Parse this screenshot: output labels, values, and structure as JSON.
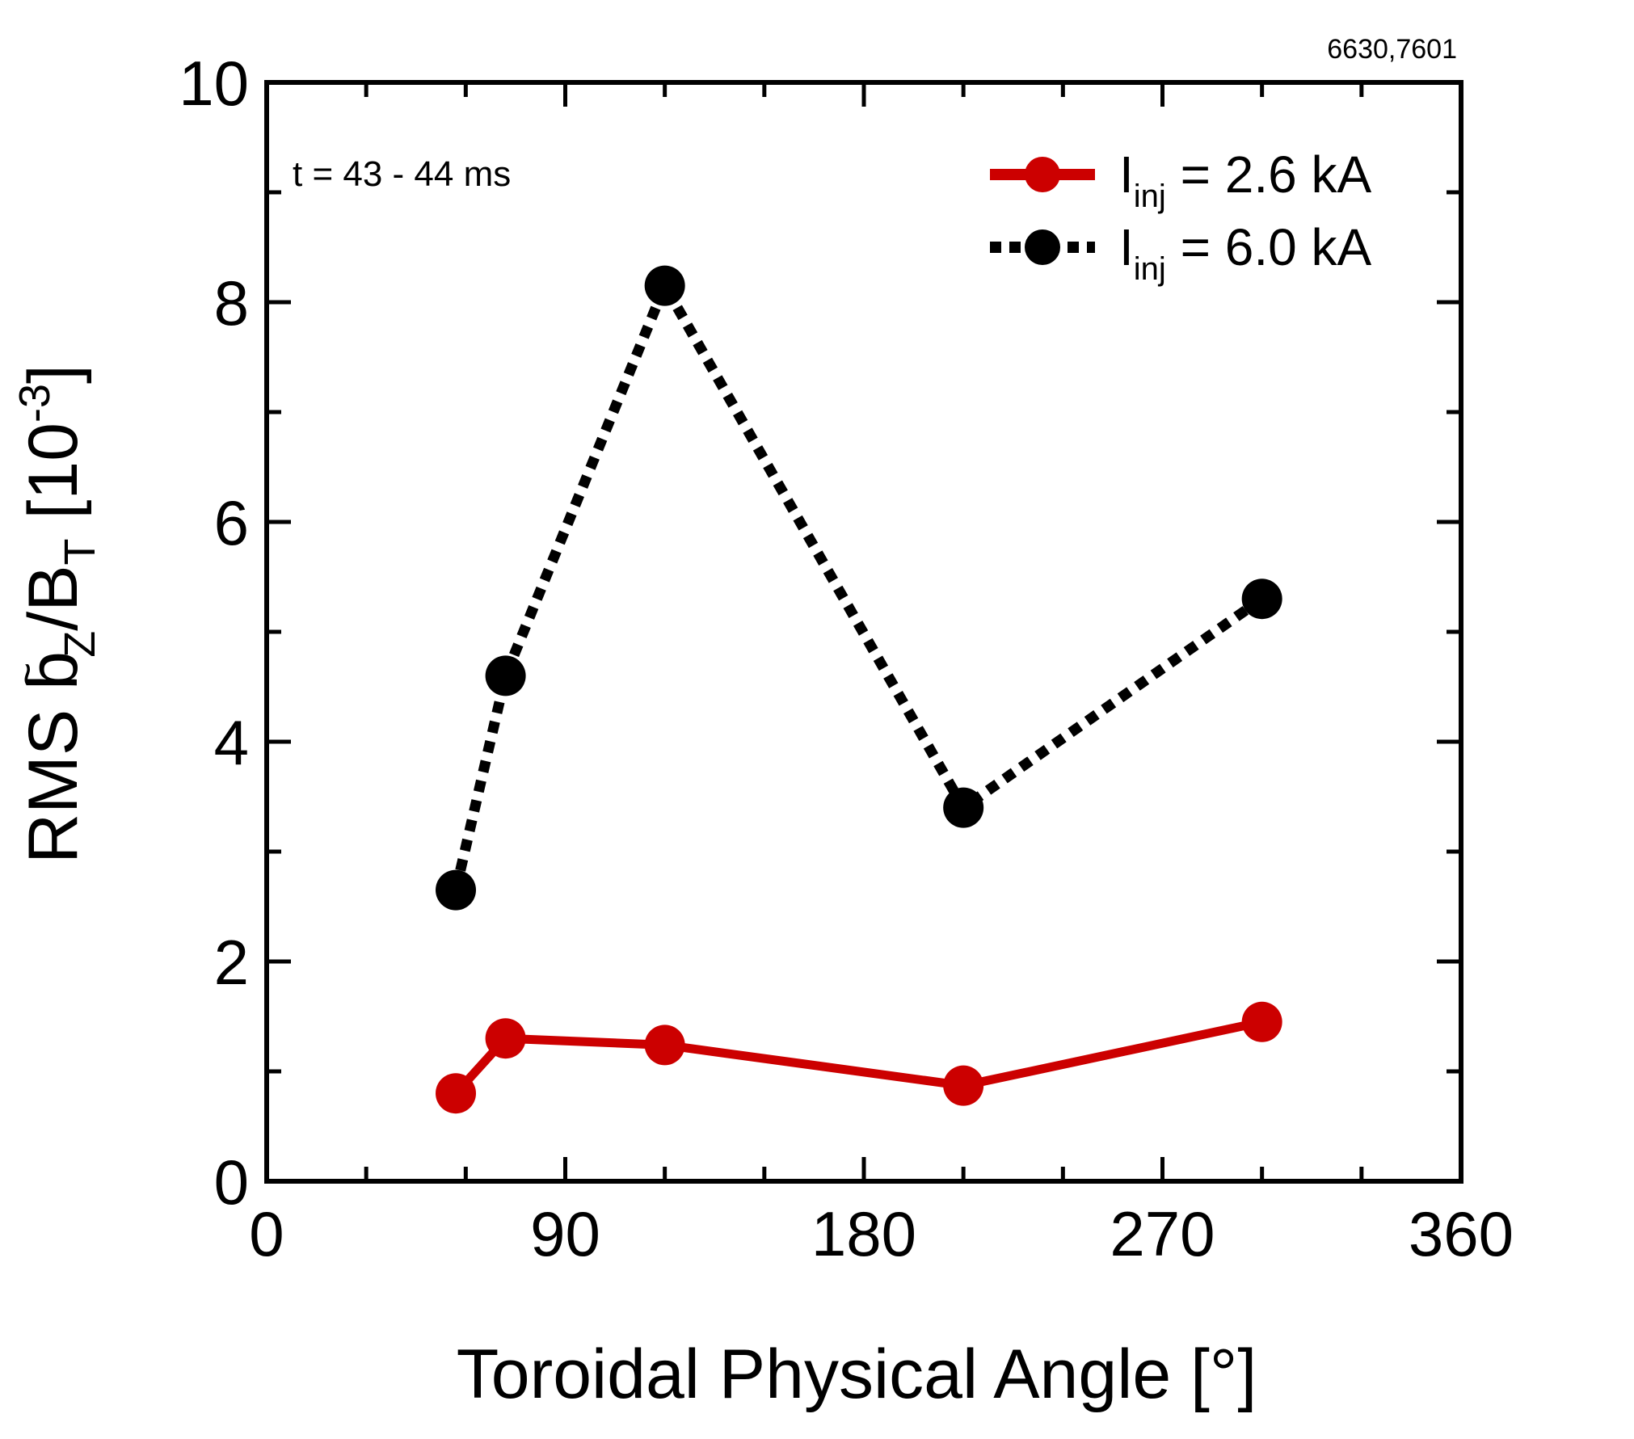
{
  "chart_data": {
    "type": "line",
    "run_ids": "6630,7601",
    "annotation": "t = 43 - 44 ms",
    "xlabel": "Toroidal Physical Angle [°]",
    "ylabel": {
      "prefix": "RMS ",
      "b": "b",
      "tilde": "~",
      "b_sub": "Z",
      "slash": "/B",
      "B_sub": "T",
      "unit_open": "  [10",
      "unit_exp": "-3",
      "unit_close": "]"
    },
    "xlim": [
      0,
      360
    ],
    "ylim": [
      0,
      10
    ],
    "xticks": [
      0,
      90,
      180,
      270,
      360
    ],
    "xtick_labels": [
      "0",
      "90",
      "180",
      "270",
      "360"
    ],
    "x_minor_step": 30,
    "yticks": [
      0,
      2,
      4,
      6,
      8,
      10
    ],
    "ytick_labels": [
      "0",
      "2",
      "4",
      "6",
      "8",
      "10"
    ],
    "y_minor_step": 1,
    "legend_position": "top-right",
    "series": [
      {
        "name": "I_inj = 2.6 kA",
        "legend": {
          "I": "I",
          "sub": "inj",
          "rest": " = 2.6 kA"
        },
        "color": "#cc0000",
        "style": "solid",
        "x": [
          57,
          72,
          120,
          210,
          300
        ],
        "values": [
          0.8,
          1.3,
          1.24,
          0.87,
          1.45
        ]
      },
      {
        "name": "I_inj = 6.0 kA",
        "legend": {
          "I": "I",
          "sub": "inj",
          "rest": " = 6.0 kA"
        },
        "color": "#000000",
        "style": "dotted",
        "x": [
          57,
          72,
          120,
          210,
          300
        ],
        "values": [
          2.65,
          4.6,
          8.15,
          3.4,
          5.3
        ]
      }
    ]
  }
}
